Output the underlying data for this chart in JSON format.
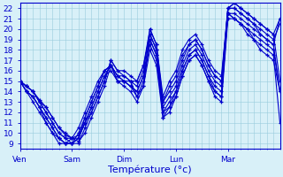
{
  "background_color": "#d8f0f8",
  "grid_color": "#99ccdd",
  "line_color": "#0000cc",
  "marker": "+",
  "markersize": 3,
  "linewidth": 0.8,
  "yticks": [
    9,
    10,
    11,
    12,
    13,
    14,
    15,
    16,
    17,
    18,
    19,
    20,
    21,
    22
  ],
  "xlabel": "Température (°c)",
  "xlabel_fontsize": 8,
  "tick_fontsize": 6.5,
  "day_labels": [
    "Ven",
    "Sam",
    "Dim",
    "Lun",
    "Mar"
  ],
  "day_positions": [
    0,
    48,
    96,
    144,
    192
  ],
  "xlim": [
    0,
    240
  ],
  "ylim": [
    8.5,
    22.5
  ],
  "series": [
    {
      "x": [
        0,
        6,
        12,
        18,
        24,
        30,
        36,
        42,
        48,
        54,
        60,
        66,
        72,
        78,
        84,
        90,
        96,
        102,
        108,
        114,
        120,
        126,
        132,
        138,
        144,
        150,
        156,
        162,
        168,
        174,
        180,
        186,
        192,
        198,
        204,
        210,
        216,
        222,
        228,
        234,
        240
      ],
      "y": [
        15.0,
        14.5,
        14.0,
        13.2,
        12.5,
        11.5,
        10.5,
        9.8,
        9.5,
        9.2,
        10.0,
        11.5,
        13.0,
        14.5,
        16.5,
        15.5,
        15.0,
        14.5,
        14.0,
        15.5,
        19.5,
        18.0,
        12.5,
        13.5,
        14.5,
        16.5,
        18.0,
        18.5,
        17.5,
        16.0,
        15.0,
        14.5,
        22.0,
        22.0,
        21.5,
        21.0,
        20.5,
        20.0,
        19.5,
        19.0,
        20.5
      ]
    },
    {
      "x": [
        0,
        6,
        12,
        18,
        24,
        30,
        36,
        42,
        48,
        54,
        60,
        66,
        72,
        78,
        84,
        90,
        96,
        102,
        108,
        114,
        120,
        126,
        132,
        138,
        144,
        150,
        156,
        162,
        168,
        174,
        180,
        186,
        192,
        198,
        204,
        210,
        216,
        222,
        228,
        234,
        240
      ],
      "y": [
        15.0,
        14.0,
        13.5,
        12.5,
        11.5,
        10.5,
        9.5,
        9.0,
        9.0,
        9.5,
        11.0,
        12.5,
        14.0,
        15.5,
        16.0,
        15.0,
        15.0,
        15.0,
        13.5,
        15.0,
        19.0,
        17.5,
        12.0,
        13.0,
        14.0,
        16.0,
        17.5,
        18.0,
        17.0,
        15.5,
        14.5,
        14.0,
        21.5,
        21.5,
        21.0,
        20.5,
        20.0,
        19.5,
        19.0,
        18.5,
        14.0
      ]
    },
    {
      "x": [
        0,
        6,
        12,
        18,
        24,
        30,
        36,
        42,
        48,
        54,
        60,
        66,
        72,
        78,
        84,
        90,
        96,
        102,
        108,
        114,
        120,
        126,
        132,
        138,
        144,
        150,
        156,
        162,
        168,
        174,
        180,
        186,
        192,
        198,
        204,
        210,
        216,
        222,
        228,
        234,
        240
      ],
      "y": [
        15.0,
        14.5,
        14.0,
        13.0,
        12.0,
        11.0,
        10.0,
        9.5,
        9.0,
        9.0,
        10.5,
        12.0,
        13.5,
        15.0,
        17.0,
        16.0,
        15.5,
        15.0,
        14.5,
        16.0,
        20.0,
        18.5,
        13.0,
        14.0,
        15.0,
        17.0,
        18.5,
        19.0,
        18.0,
        16.5,
        15.5,
        15.0,
        22.0,
        22.5,
        22.0,
        21.5,
        21.0,
        20.5,
        20.0,
        19.5,
        21.0
      ]
    },
    {
      "x": [
        0,
        6,
        12,
        18,
        24,
        30,
        36,
        42,
        48,
        54,
        60,
        66,
        72,
        78,
        84,
        90,
        96,
        102,
        108,
        114,
        120,
        126,
        132,
        138,
        144,
        150,
        156,
        162,
        168,
        174,
        180,
        186,
        192,
        198,
        204,
        210,
        216,
        222,
        228,
        234,
        240
      ],
      "y": [
        15.0,
        14.0,
        13.0,
        12.0,
        11.0,
        10.0,
        9.5,
        9.0,
        9.0,
        10.0,
        11.5,
        13.0,
        14.5,
        16.0,
        16.5,
        15.5,
        15.0,
        14.5,
        14.0,
        15.5,
        18.5,
        17.0,
        12.0,
        12.5,
        13.5,
        15.5,
        17.0,
        17.5,
        16.5,
        15.0,
        14.0,
        13.5,
        21.5,
        21.0,
        20.5,
        20.0,
        19.5,
        19.0,
        18.5,
        18.0,
        14.0
      ]
    },
    {
      "x": [
        0,
        6,
        12,
        18,
        24,
        30,
        36,
        42,
        48,
        54,
        60,
        66,
        72,
        78,
        84,
        90,
        96,
        102,
        108,
        114,
        120,
        126,
        132,
        138,
        144,
        150,
        156,
        162,
        168,
        174,
        180,
        186,
        192,
        198,
        204,
        210,
        216,
        222,
        228,
        234,
        240
      ],
      "y": [
        15.0,
        14.5,
        14.0,
        13.0,
        12.0,
        11.0,
        10.0,
        9.5,
        9.5,
        9.8,
        11.0,
        12.5,
        14.0,
        15.5,
        16.5,
        15.5,
        15.5,
        15.0,
        15.0,
        16.5,
        19.5,
        18.0,
        13.0,
        14.5,
        15.5,
        17.5,
        18.5,
        19.0,
        18.0,
        16.5,
        15.5,
        15.0,
        22.0,
        22.0,
        21.5,
        21.0,
        20.5,
        19.5,
        19.0,
        18.5,
        21.0
      ]
    },
    {
      "x": [
        0,
        6,
        12,
        18,
        24,
        30,
        36,
        42,
        48,
        54,
        60,
        66,
        72,
        78,
        84,
        90,
        96,
        102,
        108,
        114,
        120,
        126,
        132,
        138,
        144,
        150,
        156,
        162,
        168,
        174,
        180,
        186,
        192,
        198,
        204,
        210,
        216,
        222,
        228,
        234,
        240
      ],
      "y": [
        15.0,
        14.0,
        13.5,
        12.5,
        11.5,
        10.5,
        9.5,
        9.0,
        9.5,
        10.5,
        12.0,
        13.5,
        15.0,
        16.0,
        16.5,
        15.0,
        14.5,
        14.0,
        13.0,
        14.5,
        19.0,
        17.5,
        11.5,
        12.5,
        14.0,
        16.0,
        17.5,
        18.0,
        17.0,
        15.5,
        14.0,
        13.5,
        21.5,
        21.0,
        20.5,
        20.0,
        19.0,
        18.5,
        18.0,
        17.5,
        11.0
      ]
    },
    {
      "x": [
        0,
        6,
        12,
        18,
        24,
        30,
        36,
        42,
        48,
        54,
        60,
        66,
        72,
        78,
        84,
        90,
        96,
        102,
        108,
        114,
        120,
        126,
        132,
        138,
        144,
        150,
        156,
        162,
        168,
        174,
        180,
        186,
        192,
        198,
        204,
        210,
        216,
        222,
        228,
        234,
        240
      ],
      "y": [
        15.0,
        14.5,
        14.0,
        13.0,
        12.5,
        11.5,
        10.5,
        10.0,
        9.5,
        9.5,
        11.0,
        12.0,
        13.5,
        15.0,
        17.0,
        16.0,
        16.0,
        15.5,
        15.0,
        16.5,
        20.0,
        18.5,
        13.5,
        15.0,
        16.0,
        18.0,
        19.0,
        19.5,
        18.5,
        17.0,
        16.0,
        15.5,
        22.0,
        22.5,
        22.0,
        21.5,
        21.0,
        20.5,
        20.0,
        19.5,
        15.0
      ]
    },
    {
      "x": [
        0,
        6,
        12,
        18,
        24,
        30,
        36,
        42,
        48,
        54,
        60,
        66,
        72,
        78,
        84,
        90,
        96,
        102,
        108,
        114,
        120,
        126,
        132,
        138,
        144,
        150,
        156,
        162,
        168,
        174,
        180,
        186,
        192,
        198,
        204,
        210,
        216,
        222,
        228,
        234,
        240
      ],
      "y": [
        15.0,
        14.0,
        13.5,
        12.5,
        11.0,
        10.0,
        9.0,
        9.0,
        9.0,
        9.5,
        11.5,
        13.0,
        14.5,
        16.0,
        16.5,
        15.0,
        15.0,
        14.5,
        13.5,
        14.5,
        18.0,
        16.5,
        11.5,
        12.0,
        13.5,
        15.5,
        17.0,
        17.5,
        16.5,
        15.0,
        13.5,
        13.0,
        21.0,
        21.0,
        20.5,
        19.5,
        19.0,
        18.0,
        17.5,
        17.0,
        14.0
      ]
    }
  ]
}
